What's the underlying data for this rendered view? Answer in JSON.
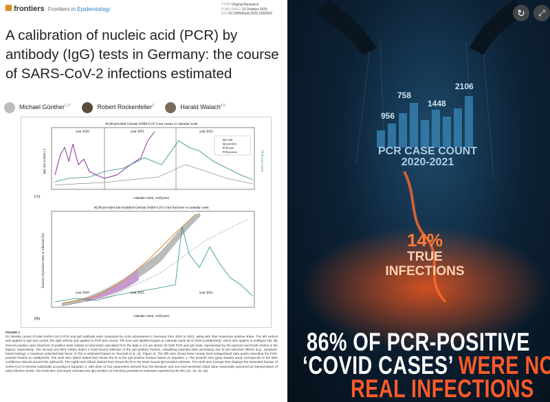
{
  "journal": {
    "logo": "frontiers",
    "section_prefix": "Frontiers in",
    "section": "Epidemiology",
    "type_label": "TYPE",
    "type": "Original Research",
    "published_label": "PUBLISHED",
    "published": "13 October 2025",
    "doi_label": "DOI",
    "doi": "10.3389/fepid.2025.1592929"
  },
  "title": "A calibration of nucleic acid (PCR) by antibody (IgG) tests in Germany: the course of SARS-CoV-2 infections estimated",
  "authors": [
    {
      "name": "Michael Günther",
      "affil": "1,2*"
    },
    {
      "name": "Robert Rockenfeller",
      "affil": "3"
    },
    {
      "name": "Harald Walach",
      "affil": "4,5"
    }
  ],
  "figure": {
    "panel_a_title": "ALM-provided German SARS-CoV-2 test counts vs calendar week",
    "panel_b_title": "ALM-provided and modelled German SARS-CoV-2 test fractions vs calendar week",
    "year_labels": [
      "year 2020",
      "year 2021",
      "year 2022"
    ],
    "x_label": "calendar week, cw#(year)",
    "panel_a": "(A)",
    "panel_b": "(B)",
    "y_label_a": "IgG test counts (·)",
    "y2_label_a": "PCR test counts",
    "y_label_b": "fraction of positive tests or infected (%)",
    "legend_a": [
      "IgG total",
      "IgG positive",
      "PCR total",
      "PCR positive"
    ]
  },
  "caption": {
    "label": "FIGURE 1",
    "text": "(A) Weekly counts of total SARS-CoV-2 PCR and IgG antibody tests conducted by ALM Laboratories in Germany from 2020 to 2022, along with their respective positive share. The left vertical axis applies to IgG test counts; the right vertical axis applies to PCR test counts. The time axis labelled begins at calendar week 08 of 2020 (cw08(2020)), which also applies to subfigure (B). (B) Percent positive rates (fractions of positive tests relative to total tests) calculated from the data in (A) are shown for both PCR and IgG tests, represented by the topmost and fourth entries in the legend, respectively. The second and third entries depict a lower-bound estimate of the IgG-positive fraction, visualizing potential data uncertainty due to pre-selection effects (e.g., symptom-based testing). A maximum potential bias factor of 755 is estimated based on Tancredi et al. (3), Figure 2). The fifth item shows three (nearly back-extrapolated) data points extending the PCR-positive fraction to cw08(2020). The sixth item (black dotted line) shows the fit to the IgG-positive fraction based on Equation 1. The seventh item (grey shaded area) corresponds to the 95% confidence interval around this optimal fit. The eighth item (black dashed line) shows the fit to the lower-bound IgG-positive estimate. The ninth item (orange line) displays the estimated fraction of SARS-CoV-2-infected individuals according to Equation 2, with three of four parameters derived from the literature and one (non-sensitive) initial value reasonably assumed as representative of early infection levels. The tenth item (red stars) indicates two IgG-positive (or infection) prevalence estimates reported by the RKI (31, 32, 33, 35)."
  },
  "infographic": {
    "bar_labels": [
      "956",
      "758",
      "1448",
      "2106"
    ],
    "count_title": "PCR CASE COUNT",
    "count_years": "2020-2021",
    "true_pct": "14%",
    "true_label": "TRUE",
    "true_label2": "INFECTIONS",
    "headline_1": "86% OF PCR-POSITIVE",
    "headline_2a": "‘COVID CASES’",
    "headline_2b": "WERE NOT",
    "headline_3": "REAL INFECTIONS"
  }
}
